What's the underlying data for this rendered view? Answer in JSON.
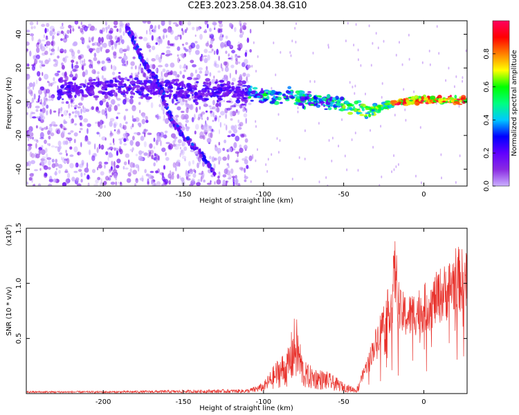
{
  "figure_title": "C2E3.2023.258.04.38.G10",
  "chart_data": [
    {
      "type": "heatmap",
      "title": "",
      "xlabel": "Height of straight line (km)",
      "ylabel": "Frequency (Hz)",
      "xlim": [
        -248,
        27
      ],
      "ylim": [
        -50,
        48
      ],
      "xticks": [
        -200,
        -150,
        -100,
        -50,
        0
      ],
      "yticks": [
        -40,
        -20,
        0,
        20,
        40
      ],
      "grid": false,
      "colorbar": {
        "label": "Normalized spectral amplitude",
        "range": [
          0.0,
          1.0
        ],
        "ticks": [
          0.0,
          0.2,
          0.4,
          0.6,
          0.8
        ],
        "colormap": [
          "#ffffff",
          "#cbb0ff",
          "#8a2be2",
          "#6000ff",
          "#0000ff",
          "#00c8ff",
          "#00ff80",
          "#00ff00",
          "#ffff00",
          "#ff8000",
          "#ff0000",
          "#ff0060"
        ]
      },
      "features": [
        {
          "name": "main-trace",
          "points": [
            [
              -220,
              8
            ],
            [
              -180,
              9
            ],
            [
              -160,
              7
            ],
            [
              -140,
              6
            ],
            [
              -120,
              6
            ],
            [
              -100,
              4
            ],
            [
              -80,
              2
            ],
            [
              -60,
              0
            ],
            [
              -45,
              -3
            ],
            [
              -35,
              -6
            ],
            [
              -25,
              -3
            ],
            [
              -15,
              0
            ],
            [
              0,
              1
            ],
            [
              27,
              1
            ]
          ]
        },
        {
          "name": "descending-trace",
          "points": [
            [
              -185,
              45
            ],
            [
              -175,
              24
            ],
            [
              -165,
              10
            ],
            [
              -158,
              -10
            ],
            [
              -150,
              -20
            ],
            [
              -140,
              -30
            ],
            [
              -130,
              -43
            ]
          ]
        }
      ]
    },
    {
      "type": "line",
      "title": "",
      "xlabel": "Height of straight line (km)",
      "ylabel": "SNR (10 * v/v)",
      "y_multiplier": "(x10^4)",
      "xlim": [
        -248,
        27
      ],
      "ylim": [
        0,
        1.5
      ],
      "xticks": [
        -200,
        -150,
        -100,
        -50,
        0
      ],
      "yticks": [
        0.5,
        1.0,
        1.5
      ],
      "grid": false,
      "legend": "none",
      "series": [
        {
          "color": "#e8302a",
          "envelope": {
            "x": [
              -248,
              -200,
              -150,
              -110,
              -100,
              -90,
              -85,
              -80,
              -75,
              -70,
              -60,
              -50,
              -42,
              -35,
              -30,
              -25,
              -20,
              -18,
              -15,
              -10,
              -5,
              0,
              5,
              10,
              15,
              20,
              27
            ],
            "y": [
              0.02,
              0.02,
              0.03,
              0.04,
              0.1,
              0.35,
              0.4,
              0.75,
              0.3,
              0.25,
              0.2,
              0.1,
              0.05,
              0.35,
              0.6,
              0.85,
              1.05,
              1.45,
              0.95,
              0.9,
              0.95,
              1.0,
              1.05,
              1.15,
              1.2,
              1.35,
              1.3
            ]
          }
        }
      ]
    }
  ]
}
